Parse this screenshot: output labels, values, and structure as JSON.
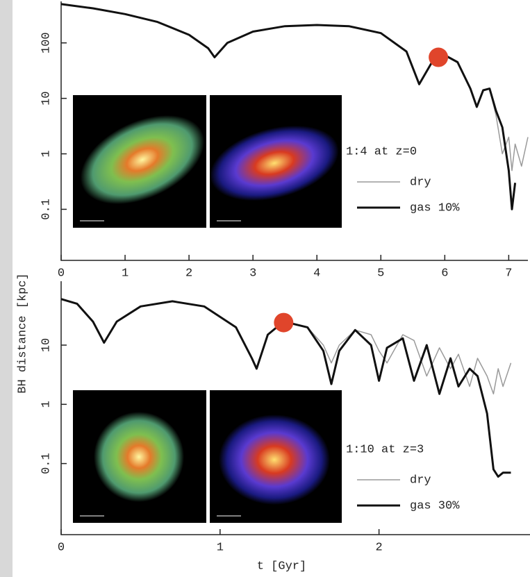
{
  "chart_data": [
    {
      "type": "line",
      "log_y": true,
      "ylabel": "BH distance [kpc]",
      "legend_title": "1:4 at z=0",
      "x": [
        0,
        0.5,
        1,
        1.5,
        2,
        2.3,
        2.4,
        2.6,
        3,
        3.5,
        4,
        4.5,
        5,
        5.4,
        5.6,
        5.8,
        6,
        6.2,
        6.4,
        6.5,
        6.6,
        6.7,
        6.8,
        6.9,
        7.0,
        7.05,
        7.1,
        7.2,
        7.3
      ],
      "series": [
        {
          "name": "dry",
          "color": "#9a9a9a",
          "width": 1.5,
          "values": [
            500,
            420,
            330,
            240,
            140,
            80,
            55,
            100,
            160,
            200,
            210,
            200,
            150,
            70,
            18,
            45,
            60,
            45,
            15,
            7,
            14,
            15,
            5,
            1,
            2,
            0.5,
            1.5,
            0.6,
            2
          ]
        },
        {
          "name": "gas 10%",
          "color": "#111111",
          "width": 3,
          "values": [
            500,
            420,
            330,
            240,
            140,
            80,
            55,
            100,
            160,
            200,
            210,
            200,
            150,
            70,
            18,
            45,
            60,
            45,
            15,
            7,
            14,
            15,
            6,
            3,
            0.5,
            0.1,
            0.3,
            null,
            null
          ]
        }
      ],
      "highlight": {
        "x": 5.9,
        "y": 55,
        "color": "#e0452b"
      },
      "xlim": [
        0,
        7.3
      ],
      "xticks": [
        0,
        1,
        2,
        3,
        4,
        5,
        6,
        7
      ],
      "ylim": [
        0.012,
        560
      ],
      "yticks": [
        0.1,
        1,
        10,
        100
      ]
    },
    {
      "type": "line",
      "log_y": true,
      "xlabel": "t [Gyr]",
      "legend_title": "1:10 at z=3",
      "x": [
        0,
        0.1,
        0.2,
        0.27,
        0.35,
        0.5,
        0.7,
        0.9,
        1.1,
        1.2,
        1.23,
        1.3,
        1.4,
        1.55,
        1.65,
        1.7,
        1.75,
        1.85,
        1.95,
        2.0,
        2.05,
        2.15,
        2.22,
        2.3,
        2.38,
        2.45,
        2.5,
        2.57,
        2.62,
        2.68,
        2.72,
        2.75,
        2.78,
        2.83
      ],
      "series": [
        {
          "name": "dry",
          "color": "#9a9a9a",
          "width": 1.5,
          "values": [
            60,
            50,
            25,
            11,
            25,
            45,
            55,
            45,
            20,
            6,
            4,
            15,
            25,
            20,
            10,
            5,
            10,
            18,
            15,
            8,
            5,
            15,
            12,
            3,
            9,
            4,
            7,
            2,
            6,
            3,
            1.5,
            4,
            2,
            5
          ]
        },
        {
          "name": "gas 30%",
          "color": "#111111",
          "width": 3,
          "values": [
            60,
            50,
            25,
            11,
            25,
            45,
            55,
            45,
            20,
            6,
            4,
            15,
            25,
            20,
            8,
            2.2,
            8,
            18,
            10,
            2.5,
            9,
            13,
            2.5,
            10,
            1.5,
            6,
            2,
            4,
            3,
            0.7,
            0.08,
            0.06,
            0.07,
            0.07
          ]
        }
      ],
      "highlight": {
        "x": 1.4,
        "y": 24,
        "color": "#e0452b"
      },
      "xlim": [
        0,
        2.95
      ],
      "xticks": [
        0,
        1,
        2
      ],
      "ylim": [
        0.0063,
        120
      ],
      "yticks": [
        0.1,
        1,
        10
      ]
    }
  ]
}
